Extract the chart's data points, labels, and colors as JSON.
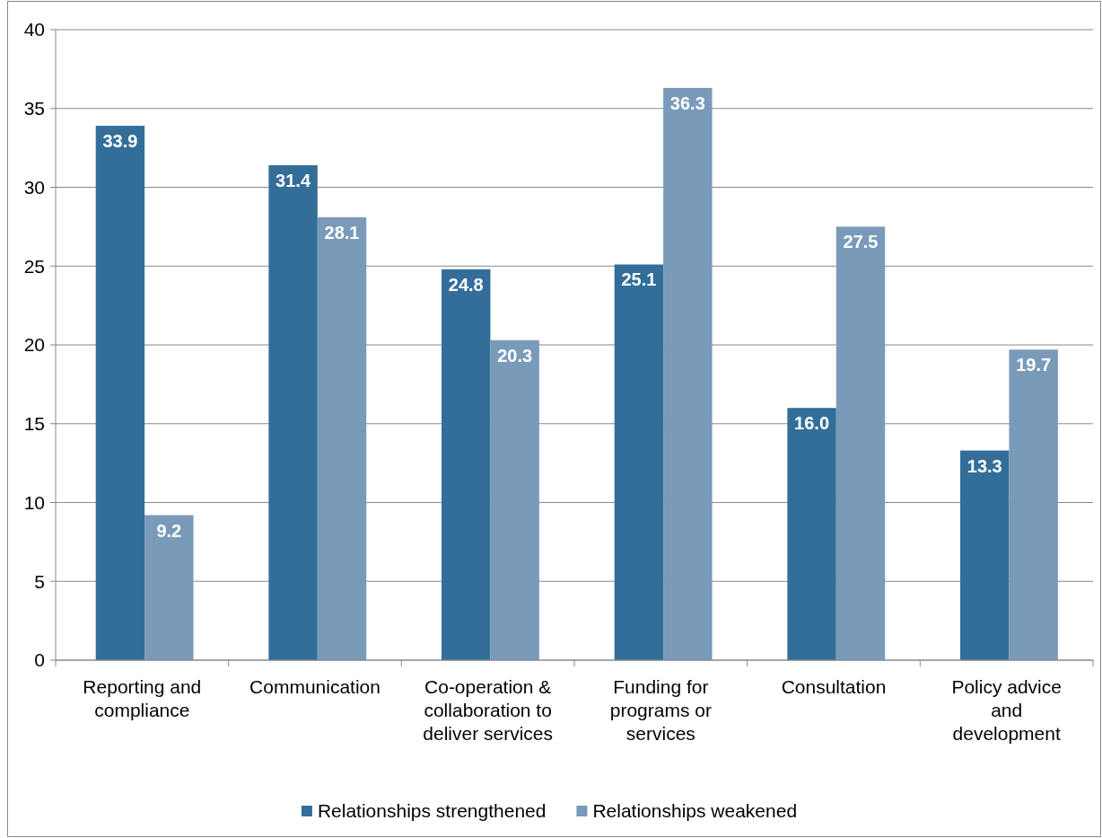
{
  "chart_data": {
    "type": "bar",
    "categories": [
      "Reporting and compliance",
      "Communication",
      "Co-operation & collaboration to deliver services",
      "Funding for programs or services",
      "Consultation",
      "Policy advice and development"
    ],
    "series": [
      {
        "name": "Relationships strengthened",
        "color": "#336e99",
        "values": [
          33.9,
          31.4,
          24.8,
          25.1,
          16.0,
          13.3
        ],
        "value_labels": [
          "33.9",
          "31.4",
          "24.8",
          "25.1",
          "16.0",
          "13.3"
        ]
      },
      {
        "name": "Relationships weakened",
        "color": "#7a9aba",
        "values": [
          9.2,
          28.1,
          20.3,
          36.3,
          27.5,
          19.7
        ],
        "value_labels": [
          "9.2",
          "28.1",
          "20.3",
          "36.3",
          "27.5",
          "19.7"
        ]
      }
    ],
    "ylim": [
      0,
      40
    ],
    "yticks": [
      0,
      5,
      10,
      15,
      20,
      25,
      30,
      35,
      40
    ],
    "grid": "y",
    "legend": "bottom"
  }
}
